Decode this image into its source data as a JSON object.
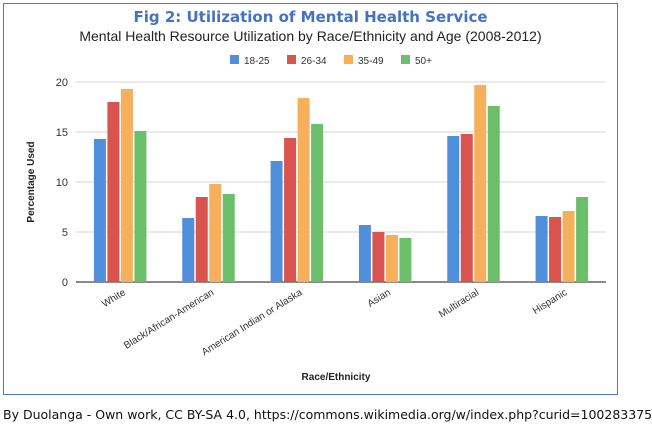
{
  "figure_label": "Fig 2: Utilization of Mental Health Service",
  "credit": "By Duolanga - Own work, CC BY-SA 4.0, https://commons.wikimedia.org/w/index.php?curid=100283375",
  "chart_data": {
    "type": "bar",
    "title": "Mental Health Resource Utilization by Race/Ethnicity and Age (2008-2012)",
    "xlabel": "Race/Ethnicity",
    "ylabel": "Percentage Used",
    "ylim": [
      0,
      20
    ],
    "yticks": [
      0,
      5,
      10,
      15,
      20
    ],
    "grid": true,
    "legend_position": "top-right",
    "categories": [
      "White",
      "Black/African-American",
      "American Indian or Alaska",
      "Asian",
      "Multiracial",
      "Hispanic"
    ],
    "series": [
      {
        "name": "18-25",
        "color": "#4f8fdc",
        "values": [
          14.3,
          6.4,
          12.1,
          5.7,
          14.6,
          6.6
        ]
      },
      {
        "name": "26-34",
        "color": "#d9534f",
        "values": [
          18.0,
          8.5,
          14.4,
          5.0,
          14.8,
          6.5
        ]
      },
      {
        "name": "35-49",
        "color": "#f6b05c",
        "values": [
          19.3,
          9.8,
          18.4,
          4.7,
          19.7,
          7.1
        ]
      },
      {
        "name": "50+",
        "color": "#6bbf6b",
        "values": [
          15.1,
          8.8,
          15.8,
          4.4,
          17.6,
          8.5
        ]
      }
    ]
  }
}
